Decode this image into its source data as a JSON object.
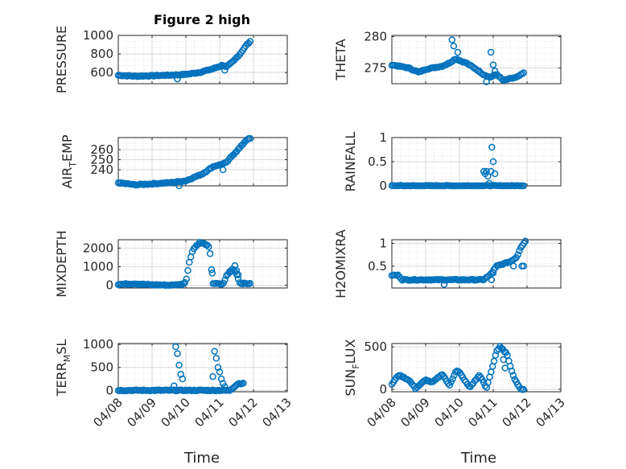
{
  "figure_title": "Figure 2 high",
  "colors": {
    "marker": "#0072BD",
    "axis": "#262626",
    "grid_major": "#d9d9d9",
    "grid_minor": "#e9e9e9"
  },
  "chart_data": [
    {
      "type": "scatter",
      "id": "pressure",
      "title": "Figure 2 high",
      "ylabel": {
        "main": "PRESSURE",
        "sub": "",
        "tail": ""
      },
      "ylim": [
        480,
        1000
      ],
      "yticks": [
        600,
        800,
        1000
      ],
      "ytick_labels": [
        "600",
        "800",
        "1000"
      ],
      "xticks": [
        "04/08",
        "04/09",
        "04/10",
        "04/11",
        "04/12",
        "04/13"
      ],
      "show_xticklabels": false,
      "anchors": [
        [
          0,
          570
        ],
        [
          0.5,
          560
        ],
        [
          1,
          565
        ],
        [
          1.8,
          575
        ],
        [
          2,
          580
        ],
        [
          2.4,
          600
        ],
        [
          2.8,
          640
        ],
        [
          3.1,
          680
        ],
        [
          3.2,
          660
        ],
        [
          3.4,
          720
        ],
        [
          3.6,
          800
        ],
        [
          3.8,
          900
        ],
        [
          3.9,
          930
        ]
      ],
      "spikes": [
        [
          1.75,
          530
        ],
        [
          3.15,
          625
        ]
      ]
    },
    {
      "type": "scatter",
      "id": "theta",
      "title": "",
      "ylabel": {
        "main": "THETA",
        "sub": "",
        "tail": ""
      },
      "ylim": [
        272.5,
        280.2
      ],
      "yticks": [
        275,
        280
      ],
      "ytick_labels": [
        "275",
        "280"
      ],
      "xticks": [
        "04/08",
        "04/09",
        "04/10",
        "04/11",
        "04/12",
        "04/13"
      ],
      "show_xticklabels": false,
      "anchors": [
        [
          0,
          275.5
        ],
        [
          0.5,
          275
        ],
        [
          0.8,
          274.3
        ],
        [
          1,
          274.8
        ],
        [
          1.5,
          275.3
        ],
        [
          1.7,
          275.8
        ],
        [
          1.9,
          276.5
        ],
        [
          2,
          276.2
        ],
        [
          2.2,
          275.8
        ],
        [
          2.5,
          274.8
        ],
        [
          2.7,
          274
        ],
        [
          2.9,
          273.5
        ],
        [
          3.1,
          274
        ],
        [
          3.3,
          273
        ],
        [
          3.5,
          273.3
        ],
        [
          3.7,
          273.5
        ],
        [
          3.9,
          274.2
        ]
      ],
      "spikes": [
        [
          1.78,
          279.5
        ],
        [
          1.83,
          278.5
        ],
        [
          1.95,
          277.5
        ],
        [
          2.8,
          272.8
        ],
        [
          2.93,
          277.5
        ],
        [
          3.0,
          275.5
        ],
        [
          3.05,
          274.5
        ]
      ]
    },
    {
      "type": "scatter",
      "id": "air-temp",
      "title": "",
      "ylabel": {
        "main": "AIR",
        "sub": "T",
        "tail": "EMP"
      },
      "ylim": [
        224,
        272
      ],
      "yticks": [
        240,
        250,
        260
      ],
      "ytick_labels": [
        "240",
        "250",
        "260"
      ],
      "xticks": [
        "04/08",
        "04/09",
        "04/10",
        "04/11",
        "04/12",
        "04/13"
      ],
      "show_xticklabels": false,
      "anchors": [
        [
          0,
          227
        ],
        [
          0.5,
          225
        ],
        [
          1,
          226
        ],
        [
          1.5,
          227
        ],
        [
          2,
          229
        ],
        [
          2.5,
          236
        ],
        [
          2.8,
          243
        ],
        [
          3.0,
          245
        ],
        [
          3.2,
          247
        ],
        [
          3.4,
          255
        ],
        [
          3.6,
          262
        ],
        [
          3.8,
          270
        ],
        [
          3.9,
          271
        ]
      ],
      "spikes": [
        [
          1.8,
          224
        ],
        [
          3.1,
          240
        ]
      ]
    },
    {
      "type": "scatter",
      "id": "rainfall",
      "title": "",
      "ylabel": {
        "main": "RAINFALL",
        "sub": "",
        "tail": ""
      },
      "ylim": [
        0,
        1
      ],
      "yticks": [
        0,
        0.5,
        1
      ],
      "ytick_labels": [
        "0",
        "0.5",
        "1"
      ],
      "xticks": [
        "04/08",
        "04/09",
        "04/10",
        "04/11",
        "04/12",
        "04/13"
      ],
      "show_xticklabels": false,
      "anchors": [
        [
          0,
          0
        ],
        [
          3.9,
          0
        ]
      ],
      "spikes": [
        [
          2.72,
          0.3
        ],
        [
          2.76,
          0.25
        ],
        [
          2.8,
          0.3
        ],
        [
          2.84,
          0.2
        ],
        [
          2.88,
          0.05
        ],
        [
          2.9,
          0.0
        ],
        [
          2.93,
          0.3
        ],
        [
          2.96,
          0.8
        ],
        [
          3.0,
          0.5
        ],
        [
          3.05,
          0.25
        ]
      ]
    },
    {
      "type": "scatter",
      "id": "mixdepth",
      "title": "",
      "ylabel": {
        "main": "MIXDEPTH",
        "sub": "",
        "tail": ""
      },
      "ylim": [
        -150,
        2450
      ],
      "yticks": [
        0,
        1000,
        2000
      ],
      "ytick_labels": [
        "0",
        "1000",
        "2000"
      ],
      "xticks": [
        "04/08",
        "04/09",
        "04/10",
        "04/11",
        "04/12",
        "04/13"
      ],
      "show_xticklabels": false,
      "anchors": [
        [
          0,
          50
        ],
        [
          0.5,
          80
        ],
        [
          0.9,
          30
        ],
        [
          1.5,
          0
        ],
        [
          1.9,
          50
        ],
        [
          2.0,
          200
        ],
        [
          2.1,
          1200
        ],
        [
          2.2,
          1900
        ],
        [
          2.4,
          2300
        ],
        [
          2.6,
          2200
        ],
        [
          2.7,
          2000
        ],
        [
          2.8,
          100
        ],
        [
          3.1,
          50
        ],
        [
          3.2,
          500
        ],
        [
          3.4,
          900
        ],
        [
          3.5,
          600
        ],
        [
          3.6,
          100
        ],
        [
          3.9,
          80
        ]
      ],
      "spikes": [
        [
          2.78,
          650
        ],
        [
          3.3,
          750
        ],
        [
          3.45,
          1050
        ],
        [
          3.5,
          800
        ],
        [
          3.55,
          550
        ]
      ]
    },
    {
      "type": "scatter",
      "id": "h2omixra",
      "title": "",
      "ylabel": {
        "main": "H2OMIXRA",
        "sub": "",
        "tail": ""
      },
      "ylim": [
        0.02,
        1.08
      ],
      "yticks": [
        0.5,
        1
      ],
      "ytick_labels": [
        "0.5",
        "1"
      ],
      "xticks": [
        "04/08",
        "04/09",
        "04/10",
        "04/11",
        "04/12",
        "04/13"
      ],
      "show_xticklabels": false,
      "anchors": [
        [
          0,
          0.3
        ],
        [
          0.2,
          0.3
        ],
        [
          0.3,
          0.2
        ],
        [
          2.5,
          0.2
        ],
        [
          2.7,
          0.2
        ],
        [
          2.9,
          0.3
        ],
        [
          3.1,
          0.5
        ],
        [
          3.5,
          0.6
        ],
        [
          3.7,
          0.7
        ],
        [
          3.8,
          0.9
        ],
        [
          3.95,
          1.05
        ]
      ],
      "spikes": [
        [
          1.55,
          0.1
        ],
        [
          2.95,
          0.2
        ],
        [
          3.0,
          0.35
        ],
        [
          3.6,
          0.5
        ],
        [
          3.85,
          0.5
        ],
        [
          3.9,
          0.5
        ]
      ]
    },
    {
      "type": "scatter",
      "id": "terrain",
      "title": "",
      "ylabel": {
        "main": "TERR",
        "sub": "M",
        "tail": "SL"
      },
      "ylim": [
        -30,
        1020
      ],
      "yticks": [
        0,
        500,
        1000
      ],
      "ytick_labels": [
        "0",
        "500",
        "1000"
      ],
      "xticks": [
        "04/08",
        "04/09",
        "04/10",
        "04/11",
        "04/12",
        "04/13"
      ],
      "show_xticklabels": true,
      "anchors": [
        [
          0,
          0
        ],
        [
          1.75,
          0
        ],
        [
          2.2,
          0
        ],
        [
          2.9,
          0
        ],
        [
          3.3,
          0
        ],
        [
          3.55,
          150
        ],
        [
          3.7,
          150
        ]
      ],
      "spikes": [
        [
          1.65,
          100
        ],
        [
          1.7,
          950
        ],
        [
          1.75,
          800
        ],
        [
          1.8,
          550
        ],
        [
          1.85,
          350
        ],
        [
          1.9,
          250
        ],
        [
          2.8,
          300
        ],
        [
          2.85,
          850
        ],
        [
          2.9,
          700
        ],
        [
          2.95,
          500
        ],
        [
          3.0,
          400
        ],
        [
          3.05,
          250
        ],
        [
          3.1,
          150
        ],
        [
          3.15,
          80
        ]
      ]
    },
    {
      "type": "scatter",
      "id": "sunflux",
      "title": "",
      "ylabel": {
        "main": "SUN",
        "sub": "F",
        "tail": "LUX"
      },
      "ylim": [
        -30,
        540
      ],
      "yticks": [
        0,
        500
      ],
      "ytick_labels": [
        "0",
        "500"
      ],
      "xticks": [
        "04/08",
        "04/09",
        "04/10",
        "04/11",
        "04/12",
        "04/13"
      ],
      "show_xticklabels": true,
      "anchors": [
        [
          0,
          60
        ],
        [
          0.2,
          170
        ],
        [
          0.5,
          110
        ],
        [
          0.7,
          10
        ],
        [
          1.0,
          110
        ],
        [
          1.2,
          80
        ],
        [
          1.5,
          180
        ],
        [
          1.7,
          40
        ],
        [
          1.9,
          220
        ],
        [
          2.0,
          200
        ],
        [
          2.3,
          20
        ],
        [
          2.6,
          170
        ],
        [
          2.8,
          10
        ],
        [
          3.0,
          300
        ],
        [
          3.1,
          450
        ],
        [
          3.2,
          500
        ],
        [
          3.4,
          420
        ],
        [
          3.6,
          150
        ],
        [
          3.8,
          0
        ],
        [
          3.9,
          0
        ]
      ],
      "spikes": [
        [
          3.25,
          480
        ],
        [
          3.3,
          350
        ],
        [
          3.35,
          250
        ]
      ]
    }
  ],
  "xlabel_left": "Time",
  "xlabel_right": "Time"
}
